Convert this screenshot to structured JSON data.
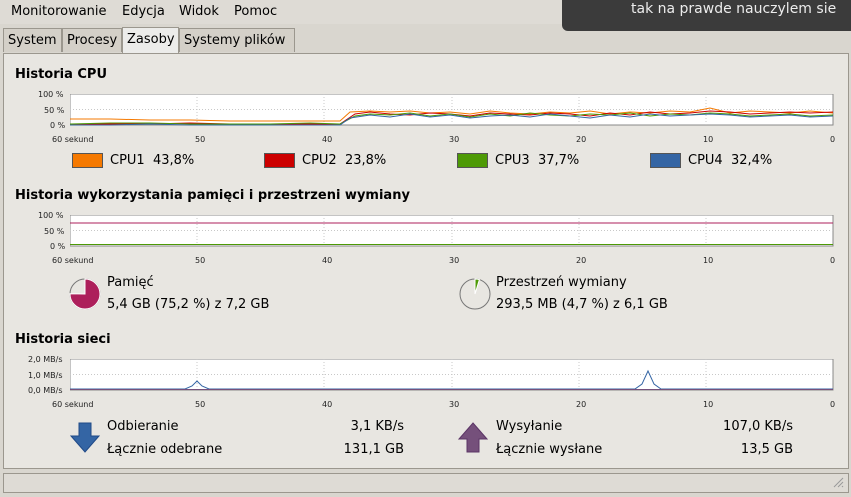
{
  "menu": {
    "items": [
      {
        "label": "Monitorowanie"
      },
      {
        "label": "Edycja"
      },
      {
        "label": "Widok"
      },
      {
        "label": "Pomoc"
      }
    ]
  },
  "notification": {
    "text": "tak na prawde nauczylem sie"
  },
  "tabs": [
    {
      "label": "System"
    },
    {
      "label": "Procesy"
    },
    {
      "label": "Zasoby",
      "active": true
    },
    {
      "label": "Systemy plików"
    }
  ],
  "cpu": {
    "title": "Historia CPU",
    "y_ticks": [
      "100 %",
      "50 %",
      "0 %"
    ],
    "x_ticks": [
      "60 sekund",
      "50",
      "40",
      "30",
      "20",
      "10",
      "0"
    ],
    "legend": [
      {
        "name": "CPU1",
        "value": "43,8%",
        "color": "#f57900"
      },
      {
        "name": "CPU2",
        "value": "23,8%",
        "color": "#cc0000"
      },
      {
        "name": "CPU3",
        "value": "37,7%",
        "color": "#4e9a06"
      },
      {
        "name": "CPU4",
        "value": "32,4%",
        "color": "#3465a4"
      }
    ]
  },
  "memory": {
    "title": "Historia wykorzystania pamięci i przestrzeni wymiany",
    "y_ticks": [
      "100 %",
      "50 %",
      "0 %"
    ],
    "x_ticks": [
      "60 sekund",
      "50",
      "40",
      "30",
      "20",
      "10",
      "0"
    ],
    "ram": {
      "label": "Pamięć",
      "detail": "5,4 GB (75,2 %) z 7,2 GB",
      "color": "#ad1f5b",
      "fraction": 0.752
    },
    "swap": {
      "label": "Przestrzeń wymiany",
      "detail": "293,5 MB (4,7 %) z 6,1 GB",
      "color": "#4e9a06",
      "fraction": 0.047
    }
  },
  "network": {
    "title": "Historia sieci",
    "y_ticks": [
      "2,0 MB/s",
      "1,0 MB/s",
      "0,0 MB/s"
    ],
    "x_ticks": [
      "60 sekund",
      "50",
      "40",
      "30",
      "20",
      "10",
      "0"
    ],
    "receiving": {
      "label": "Odbieranie",
      "value": "3,1 KB/s",
      "total_label": "Łącznie odebrane",
      "total": "131,1 GB",
      "color": "#3465a4"
    },
    "sending": {
      "label": "Wysyłanie",
      "value": "107,0 KB/s",
      "total_label": "Łącznie wysłane",
      "total": "13,5 GB",
      "color": "#75507b"
    }
  }
}
